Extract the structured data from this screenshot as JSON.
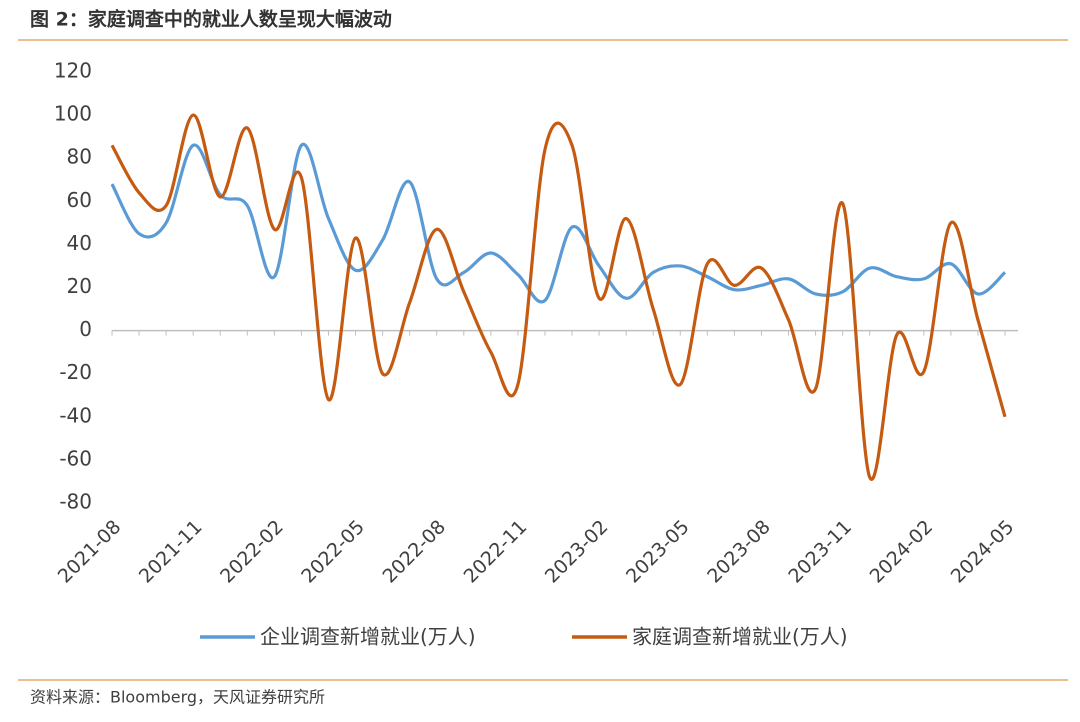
{
  "chart_data": {
    "type": "line",
    "title": "图 2：家庭调查中的就业人数呈现大幅波动",
    "source": "资料来源：Bloomberg，天风证券研究所",
    "categories": [
      "2021-08",
      null,
      null,
      "2021-11",
      null,
      null,
      "2022-02",
      null,
      null,
      "2022-05",
      null,
      null,
      "2022-08",
      null,
      null,
      "2022-11",
      null,
      null,
      "2023-02",
      null,
      null,
      "2023-05",
      null,
      null,
      "2023-08",
      null,
      null,
      "2023-11",
      null,
      null,
      "2024-02",
      null,
      null,
      "2024-05"
    ],
    "series": [
      {
        "name": "企业调查新增就业(万人)",
        "color": "#5b9bd5",
        "values": [
          68,
          45,
          50,
          86,
          63,
          58,
          25,
          86,
          52,
          28,
          42,
          69,
          24,
          27,
          36,
          26,
          14,
          48,
          30,
          15,
          27,
          30,
          25,
          19,
          21,
          24,
          17,
          18,
          29,
          25,
          24,
          31,
          17,
          27
        ]
      },
      {
        "name": "家庭调查新增就业(万人)",
        "color": "#c55a11",
        "values": [
          86,
          64,
          58,
          100,
          62,
          94,
          47,
          71,
          -32,
          43,
          -20,
          13,
          47,
          18,
          -10,
          -25,
          84,
          86,
          15,
          52,
          10,
          -25,
          31,
          21,
          29,
          5,
          -27,
          59,
          -68,
          -2,
          -19,
          50,
          5,
          -40
        ]
      }
    ],
    "ylim": [
      -80,
      120
    ],
    "yticks": [
      -80,
      -60,
      -40,
      -20,
      0,
      20,
      40,
      60,
      80,
      100,
      120
    ],
    "grid": false,
    "legend": "bottom"
  }
}
